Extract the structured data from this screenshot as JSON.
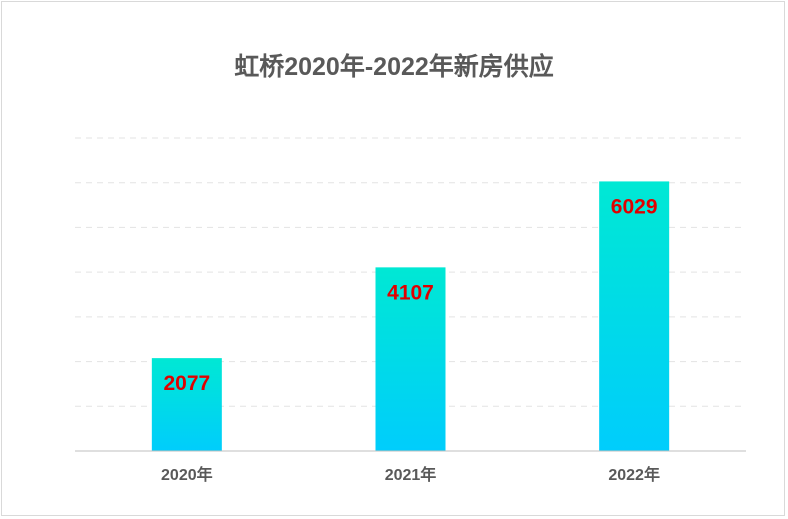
{
  "chart_data": {
    "type": "bar",
    "title": "虹桥2020年-2022年新房供应",
    "categories": [
      "2020年",
      "2021年",
      "2022年"
    ],
    "values": [
      2077,
      4107,
      6029
    ],
    "ylim": [
      0,
      7000
    ],
    "ytick_step": 1000,
    "grid": true,
    "gridline_style": "dashed",
    "bar_gradient": [
      "#00e8d4",
      "#00cdfc"
    ],
    "value_label_color": "#e00000",
    "text_color": "#595959",
    "gridline_color": "#e3e3e3",
    "axis_color": "#bfbfbf"
  }
}
